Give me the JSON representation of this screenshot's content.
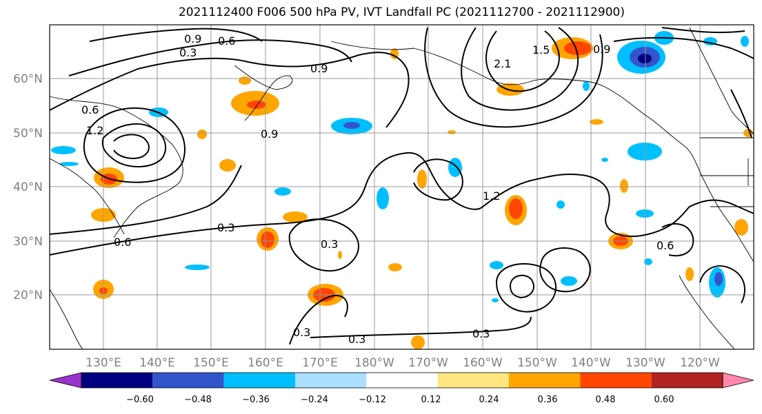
{
  "title": "2021112400 F006 500 hPa PV, IVT Landfall PC (2021112700 - 2021112900)",
  "lat_ticks": [
    "20°N",
    "30°N",
    "40°N",
    "50°N",
    "60°N"
  ],
  "lon_ticks": [
    "130°E",
    "140°E",
    "150°E",
    "160°E",
    "170°E",
    "180°W",
    "170°W",
    "160°W",
    "150°W",
    "140°W",
    "130°W",
    "120°W"
  ],
  "colorbar": {
    "colors": [
      "#9933cc",
      "#000080",
      "#3355cc",
      "#00bfff",
      "#aadfff",
      "#ffffff",
      "#ffe680",
      "#ffa500",
      "#ff4500",
      "#b22222",
      "#ff88aa"
    ],
    "labels": [
      "−0.60",
      "−0.48",
      "−0.36",
      "−0.24",
      "−0.12",
      "0.12",
      "0.24",
      "0.36",
      "0.48",
      "0.60"
    ]
  },
  "contour_labels": [
    "0.3",
    "0.6",
    "0.9",
    "1.2",
    "1.5",
    "2.1",
    "0.3",
    "0.6",
    "0.9",
    "0.3",
    "0.3",
    "0.3",
    "0.6",
    "0.9",
    "1.2",
    "0.9",
    "0.6",
    "0.3"
  ],
  "palette": {
    "land_line": "#000000",
    "grid": "#999999"
  }
}
